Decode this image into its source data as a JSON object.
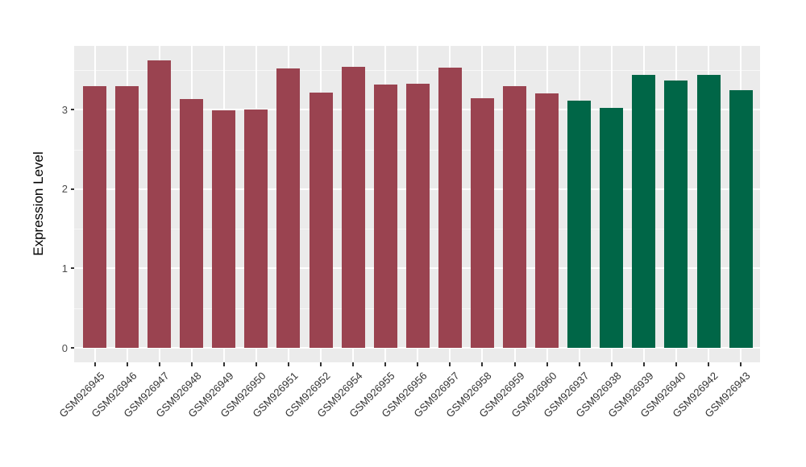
{
  "chart_data": {
    "type": "bar",
    "title": "",
    "xlabel": "",
    "ylabel": "Expression Level",
    "categories": [
      "GSM926945",
      "GSM926946",
      "GSM926947",
      "GSM926948",
      "GSM926949",
      "GSM926950",
      "GSM926951",
      "GSM926952",
      "GSM926954",
      "GSM926955",
      "GSM926956",
      "GSM926957",
      "GSM926958",
      "GSM926959",
      "GSM926960",
      "GSM926937",
      "GSM926938",
      "GSM926939",
      "GSM926940",
      "GSM926942",
      "GSM926943"
    ],
    "values": [
      3.3,
      3.3,
      3.62,
      3.13,
      2.99,
      3.0,
      3.52,
      3.22,
      3.54,
      3.32,
      3.33,
      3.53,
      3.14,
      3.3,
      3.2,
      3.11,
      3.02,
      3.44,
      3.37,
      3.44,
      3.25
    ],
    "bar_colors": [
      "#9a4350",
      "#9a4350",
      "#9a4350",
      "#9a4350",
      "#9a4350",
      "#9a4350",
      "#9a4350",
      "#9a4350",
      "#9a4350",
      "#9a4350",
      "#9a4350",
      "#9a4350",
      "#9a4350",
      "#9a4350",
      "#9a4350",
      "#006647",
      "#006647",
      "#006647",
      "#006647",
      "#006647",
      "#006647"
    ],
    "palette": {
      "group1": "#9a4350",
      "group2": "#006647"
    },
    "yticks": [
      0,
      1,
      2,
      3
    ],
    "yticks_minor": [
      0.5,
      1.5,
      2.5,
      3.5
    ],
    "ylim": [
      -0.18,
      3.8
    ],
    "grid": true,
    "legend": "none",
    "panel_bg": "#ebebeb",
    "grid_color": "#ffffff"
  }
}
